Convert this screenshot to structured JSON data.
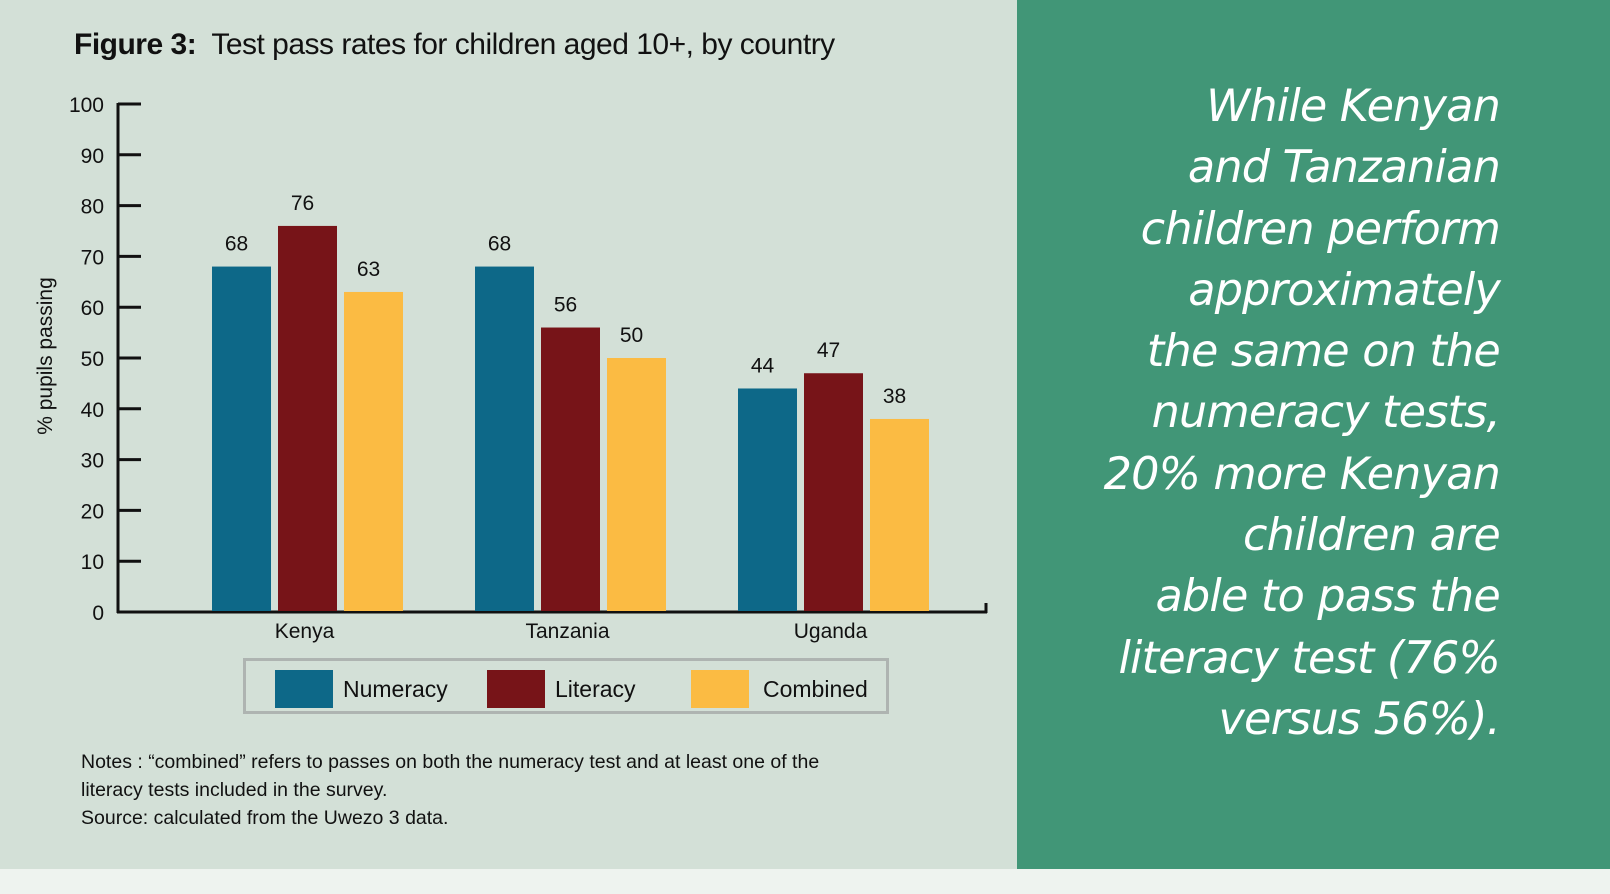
{
  "figure": {
    "title_prefix": "Figure 3:",
    "title_text": "Test pass rates for children aged 10+, by country"
  },
  "chart_data": {
    "type": "bar",
    "title": "Figure 3: Test pass rates for children aged 10+, by country",
    "xlabel": "",
    "ylabel": "%  pupils passing",
    "ylim": [
      0,
      100
    ],
    "yticks": [
      0,
      10,
      20,
      30,
      40,
      50,
      60,
      70,
      80,
      90,
      100
    ],
    "grid": false,
    "legend_position": "bottom",
    "categories": [
      "Kenya",
      "Tanzania",
      "Uganda"
    ],
    "series": [
      {
        "name": "Numeracy",
        "color": "#0d6888",
        "values": [
          68,
          68,
          44
        ]
      },
      {
        "name": "Literacy",
        "color": "#771418",
        "values": [
          76,
          56,
          47
        ]
      },
      {
        "name": "Combined",
        "color": "#fbbb43",
        "values": [
          63,
          50,
          38
        ]
      }
    ]
  },
  "notes": {
    "line1": "Notes : “combined” refers to passes on both the numeracy test and at least one of the",
    "line2": "literacy tests included in the survey.",
    "source": "Source: calculated from the Uwezo 3 data."
  },
  "callout": {
    "lines": [
      "While Kenyan",
      "and Tanzanian",
      "children perform",
      "approximately",
      "the same on the",
      "numeracy tests,",
      "20% more Kenyan",
      "children are",
      "able to pass the",
      "literacy test (76%",
      "versus 56%)."
    ]
  },
  "colors": {
    "panel_bg": "#d3e0d7",
    "callout_bg": "#419677",
    "axis": "#111111"
  }
}
